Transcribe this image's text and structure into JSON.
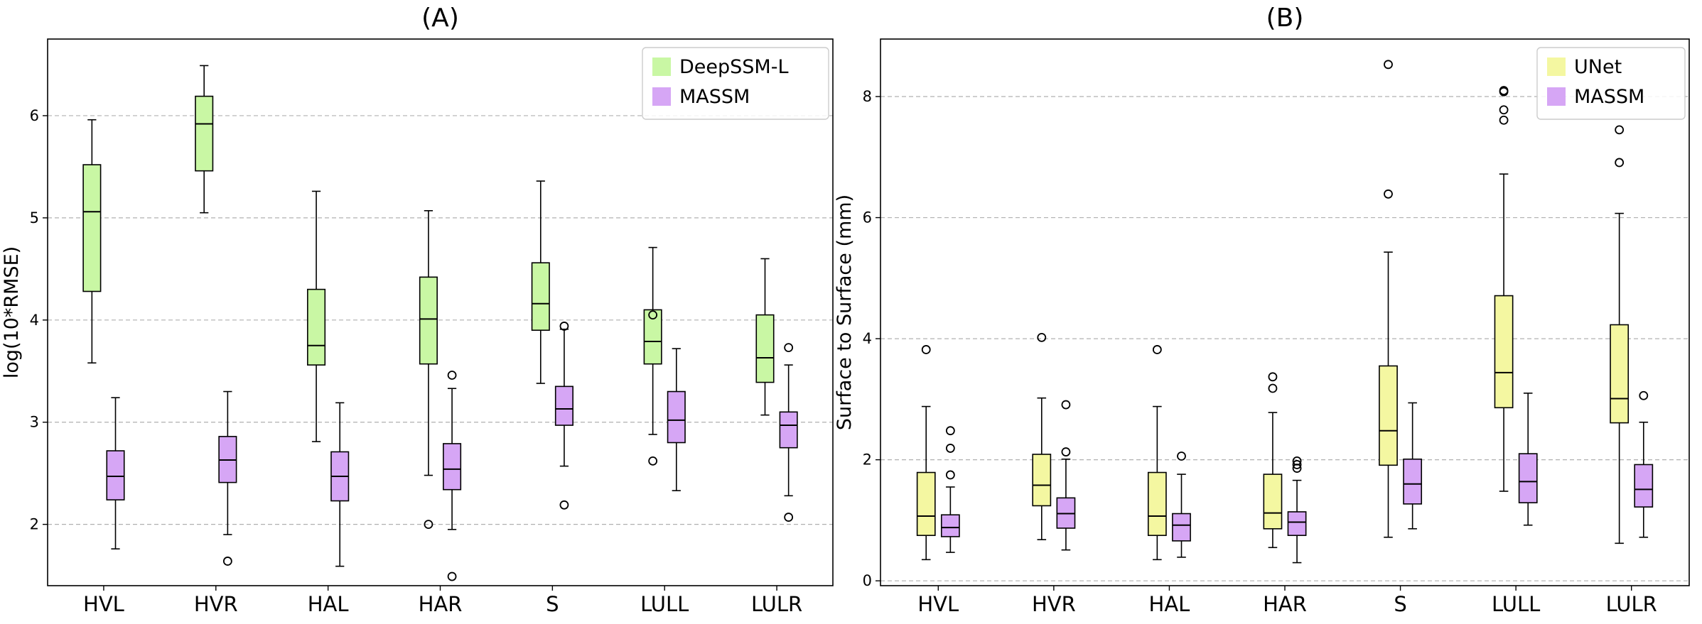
{
  "chart_data": [
    {
      "type": "boxplot",
      "title": "(A)",
      "xlabel": "",
      "ylabel": "log(10*RMSE)",
      "ylim": [
        1.4,
        6.75
      ],
      "yticks": [
        "2",
        "3",
        "4",
        "5",
        "6"
      ],
      "grid": "horizontal dashed",
      "legend_position": "top-right",
      "categories": [
        "HVL",
        "HVR",
        "HAL",
        "HAR",
        "S",
        "LULL",
        "LULR"
      ],
      "series": [
        {
          "name": "DeepSSM-L",
          "color": "#c9f7a4",
          "boxes": [
            {
              "whislo": 3.58,
              "q1": 4.28,
              "med": 5.06,
              "q3": 5.52,
              "whishi": 5.96,
              "fliers": []
            },
            {
              "whislo": 5.05,
              "q1": 5.46,
              "med": 5.92,
              "q3": 6.19,
              "whishi": 6.49,
              "fliers": []
            },
            {
              "whislo": 2.81,
              "q1": 3.56,
              "med": 3.75,
              "q3": 4.3,
              "whishi": 5.26,
              "fliers": []
            },
            {
              "whislo": 2.48,
              "q1": 3.57,
              "med": 4.01,
              "q3": 4.42,
              "whishi": 5.07,
              "fliers": [
                2.0
              ]
            },
            {
              "whislo": 3.38,
              "q1": 3.9,
              "med": 4.16,
              "q3": 4.56,
              "whishi": 5.36,
              "fliers": []
            },
            {
              "whislo": 2.88,
              "q1": 3.57,
              "med": 3.79,
              "q3": 4.1,
              "whishi": 4.71,
              "fliers": [
                2.62,
                4.05
              ]
            },
            {
              "whislo": 3.07,
              "q1": 3.39,
              "med": 3.63,
              "q3": 4.05,
              "whishi": 4.6,
              "fliers": []
            }
          ]
        },
        {
          "name": "MASSM",
          "color": "#d6a6f5",
          "boxes": [
            {
              "whislo": 1.76,
              "q1": 2.24,
              "med": 2.47,
              "q3": 2.72,
              "whishi": 3.24,
              "fliers": []
            },
            {
              "whislo": 1.9,
              "q1": 2.41,
              "med": 2.63,
              "q3": 2.86,
              "whishi": 3.3,
              "fliers": [
                1.64
              ]
            },
            {
              "whislo": 1.59,
              "q1": 2.23,
              "med": 2.47,
              "q3": 2.71,
              "whishi": 3.19,
              "fliers": []
            },
            {
              "whislo": 1.95,
              "q1": 2.34,
              "med": 2.54,
              "q3": 2.79,
              "whishi": 3.33,
              "fliers": [
                1.49,
                3.46
              ]
            },
            {
              "whislo": 2.57,
              "q1": 2.97,
              "med": 3.13,
              "q3": 3.35,
              "whishi": 3.91,
              "fliers": [
                2.19,
                3.94
              ]
            },
            {
              "whislo": 2.33,
              "q1": 2.8,
              "med": 3.02,
              "q3": 3.3,
              "whishi": 3.72,
              "fliers": []
            },
            {
              "whislo": 2.28,
              "q1": 2.75,
              "med": 2.97,
              "q3": 3.1,
              "whishi": 3.56,
              "fliers": [
                2.07,
                3.73
              ]
            }
          ]
        }
      ]
    },
    {
      "type": "boxplot",
      "title": "(B)",
      "xlabel": "",
      "ylabel": "Surface to Surface (mm)",
      "ylim": [
        -0.08,
        8.95
      ],
      "yticks": [
        "0",
        "2",
        "4",
        "6",
        "8"
      ],
      "grid": "horizontal dashed",
      "legend_position": "top-right",
      "categories": [
        "HVL",
        "HVR",
        "HAL",
        "HAR",
        "S",
        "LULL",
        "LULR"
      ],
      "series": [
        {
          "name": "UNet",
          "color": "#f4f7a1",
          "boxes": [
            {
              "whislo": 0.35,
              "q1": 0.75,
              "med": 1.07,
              "q3": 1.79,
              "whishi": 2.88,
              "fliers": [
                3.82
              ]
            },
            {
              "whislo": 0.68,
              "q1": 1.24,
              "med": 1.58,
              "q3": 2.09,
              "whishi": 3.02,
              "fliers": [
                4.02
              ]
            },
            {
              "whislo": 0.35,
              "q1": 0.75,
              "med": 1.07,
              "q3": 1.79,
              "whishi": 2.88,
              "fliers": [
                3.82
              ]
            },
            {
              "whislo": 0.55,
              "q1": 0.86,
              "med": 1.12,
              "q3": 1.76,
              "whishi": 2.78,
              "fliers": [
                3.18,
                3.37
              ]
            },
            {
              "whislo": 0.72,
              "q1": 1.91,
              "med": 2.48,
              "q3": 3.55,
              "whishi": 5.43,
              "fliers": [
                6.39,
                8.53
              ]
            },
            {
              "whislo": 1.48,
              "q1": 2.86,
              "med": 3.44,
              "q3": 4.71,
              "whishi": 6.72,
              "fliers": [
                7.61,
                7.78,
                8.08,
                8.1
              ]
            },
            {
              "whislo": 0.62,
              "q1": 2.61,
              "med": 3.01,
              "q3": 4.23,
              "whishi": 6.07,
              "fliers": [
                6.91,
                7.45
              ]
            }
          ]
        },
        {
          "name": "MASSM",
          "color": "#d6a6f5",
          "boxes": [
            {
              "whislo": 0.47,
              "q1": 0.73,
              "med": 0.88,
              "q3": 1.09,
              "whishi": 1.55,
              "fliers": [
                1.75,
                2.19,
                2.48
              ]
            },
            {
              "whislo": 0.51,
              "q1": 0.87,
              "med": 1.11,
              "q3": 1.37,
              "whishi": 2.01,
              "fliers": [
                2.13,
                2.91
              ]
            },
            {
              "whislo": 0.39,
              "q1": 0.66,
              "med": 0.92,
              "q3": 1.11,
              "whishi": 1.76,
              "fliers": [
                2.06
              ]
            },
            {
              "whislo": 0.3,
              "q1": 0.75,
              "med": 0.97,
              "q3": 1.14,
              "whishi": 1.66,
              "fliers": [
                1.86,
                1.92,
                1.98
              ]
            },
            {
              "whislo": 0.86,
              "q1": 1.27,
              "med": 1.6,
              "q3": 2.01,
              "whishi": 2.94,
              "fliers": []
            },
            {
              "whislo": 0.92,
              "q1": 1.29,
              "med": 1.64,
              "q3": 2.1,
              "whishi": 3.1,
              "fliers": []
            },
            {
              "whislo": 0.72,
              "q1": 1.22,
              "med": 1.51,
              "q3": 1.92,
              "whishi": 2.62,
              "fliers": [
                3.06
              ]
            }
          ]
        }
      ]
    }
  ]
}
